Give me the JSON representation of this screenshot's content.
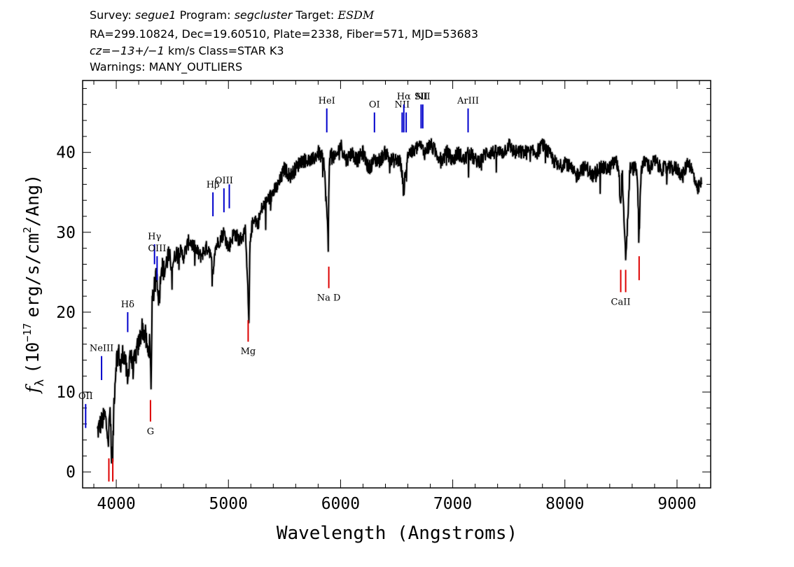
{
  "header": {
    "line1": {
      "survey_label": "Survey:",
      "survey": "segue1",
      "program_label": "Program:",
      "program": "segcluster",
      "target_label": "Target:",
      "target": "ESDM"
    },
    "line2": "RA=299.10824, Dec=19.60510, Plate=2338, Fiber=571, MJD=53683",
    "line3": {
      "cz": "cz=−13+/−1",
      "rest": "km/s Class=STAR K3"
    },
    "line4": "Warnings: MANY_OUTLIERS"
  },
  "chart_data": {
    "type": "line",
    "xlabel": "Wavelength (Angstroms)",
    "ylabel_parts": {
      "f": "f",
      "sub": "λ",
      "pre": "(10",
      "exp": "−17",
      "mid": "erg/s/cm",
      "exp2": "2",
      "post": "/Ang)"
    },
    "xlim": [
      3700,
      9300
    ],
    "ylim": [
      -2,
      49
    ],
    "x_ticks": [
      4000,
      5000,
      6000,
      7000,
      8000,
      9000
    ],
    "y_ticks": [
      0,
      10,
      20,
      30,
      40
    ],
    "series": [
      {
        "color": "#000000",
        "x": [
          3830,
          3860,
          3900,
          3930,
          3945,
          3955,
          3968,
          3980,
          4000,
          4020,
          4040,
          4060,
          4080,
          4101,
          4120,
          4150,
          4180,
          4200,
          4230,
          4260,
          4280,
          4300,
          4310,
          4320,
          4340,
          4360,
          4383,
          4400,
          4430,
          4460,
          4500,
          4550,
          4600,
          4650,
          4700,
          4750,
          4800,
          4830,
          4861,
          4880,
          4920,
          4960,
          5000,
          5050,
          5100,
          5150,
          5170,
          5183,
          5190,
          5200,
          5230,
          5260,
          5300,
          5350,
          5400,
          5450,
          5500,
          5550,
          5600,
          5650,
          5700,
          5750,
          5800,
          5850,
          5880,
          5890,
          5895,
          5900,
          5920,
          5950,
          6000,
          6050,
          6100,
          6150,
          6200,
          6250,
          6300,
          6350,
          6400,
          6450,
          6500,
          6530,
          6550,
          6563,
          6575,
          6600,
          6650,
          6700,
          6750,
          6800,
          6850,
          6900,
          6950,
          7000,
          7050,
          7100,
          7150,
          7200,
          7250,
          7300,
          7350,
          7400,
          7450,
          7500,
          7550,
          7600,
          7650,
          7700,
          7750,
          7800,
          7850,
          7900,
          7950,
          8000,
          8050,
          8100,
          8150,
          8200,
          8250,
          8300,
          8350,
          8400,
          8450,
          8480,
          8498,
          8510,
          8530,
          8542,
          8555,
          8580,
          8610,
          8640,
          8662,
          8680,
          8720,
          8760,
          8800,
          8850,
          8900,
          8950,
          9000,
          9050,
          9100,
          9150,
          9180,
          9200,
          9220
        ],
        "y": [
          5,
          6,
          7,
          4,
          8,
          3,
          2,
          9,
          14,
          15,
          13,
          15,
          14,
          11,
          15,
          13,
          15,
          16,
          18,
          17,
          15,
          16,
          10,
          22,
          23,
          25,
          21,
          26,
          25,
          27,
          26,
          28,
          27,
          29,
          28,
          27,
          28,
          28,
          25,
          28,
          29,
          30,
          28,
          30,
          29,
          30,
          24,
          18,
          27,
          30,
          32,
          31,
          33,
          34,
          35,
          36,
          38,
          37,
          38,
          39,
          39,
          39,
          40,
          39,
          32,
          28,
          35,
          39,
          40,
          39,
          41,
          39,
          40,
          39,
          40,
          38,
          39,
          39,
          40,
          39,
          39,
          39,
          37,
          35,
          37,
          40,
          40,
          41,
          40,
          41,
          40,
          39,
          40,
          39,
          40,
          39,
          40,
          39,
          39,
          40,
          40,
          40,
          40,
          41,
          40,
          40,
          40,
          40,
          40,
          41,
          40,
          39,
          38,
          39,
          38,
          37,
          38,
          38,
          37,
          38,
          38,
          38,
          39,
          38,
          33,
          38,
          30,
          27,
          30,
          38,
          38,
          38,
          30,
          38,
          39,
          38,
          39,
          38,
          38,
          38,
          38,
          37,
          39,
          37,
          35,
          36,
          36
        ]
      }
    ],
    "emission_lines": [
      {
        "label": "OII",
        "x": 3727,
        "y0": 5.5,
        "y1": 8.5
      },
      {
        "label": "NeIII",
        "x": 3869,
        "y0": 11.5,
        "y1": 14.5
      },
      {
        "label": "Hδ",
        "x": 4102,
        "y0": 17.5,
        "y1": 20
      },
      {
        "label": "Hγ",
        "x": 4341,
        "y0": 26,
        "y1": 28.5
      },
      {
        "label": "OIII",
        "x": 4364,
        "y0": 24,
        "y1": 27
      },
      {
        "label": "Hβ",
        "x": 4862,
        "y0": 32,
        "y1": 35
      },
      {
        "label": "OIII",
        "x": 4960,
        "y0": 32.5,
        "y1": 35.5
      },
      {
        "label": "",
        "x": 5008,
        "y0": 33,
        "y1": 36
      },
      {
        "label": "HeI",
        "x": 5877,
        "y0": 42.5,
        "y1": 45.5
      },
      {
        "label": "OI",
        "x": 6302,
        "y0": 42.5,
        "y1": 45
      },
      {
        "label": "NII",
        "x": 6549,
        "y0": 42.5,
        "y1": 45
      },
      {
        "label": "Hα",
        "x": 6564,
        "y0": 42.5,
        "y1": 46
      },
      {
        "label": "",
        "x": 6585,
        "y0": 42.5,
        "y1": 45
      },
      {
        "label": "SII",
        "x": 6718,
        "y0": 43,
        "y1": 46
      },
      {
        "label": "NII",
        "x": 6733,
        "y0": 43,
        "y1": 46
      },
      {
        "label": "ArIII",
        "x": 7137,
        "y0": 42.5,
        "y1": 45.5
      }
    ],
    "absorption_lines": [
      {
        "label": "",
        "x": 3934,
        "y0": -1.2,
        "y1": 1.7
      },
      {
        "label": "",
        "x": 3969,
        "y0": -1.2,
        "y1": 1.7
      },
      {
        "label": "G",
        "x": 4305,
        "y0": 6.3,
        "y1": 9
      },
      {
        "label": "Mg",
        "x": 5176,
        "y0": 16.3,
        "y1": 19
      },
      {
        "label": "Na  D",
        "x": 5895,
        "y0": 23,
        "y1": 25.7
      },
      {
        "label": "CaII",
        "x": 8498,
        "y0": 22.5,
        "y1": 25.3
      },
      {
        "label": "",
        "x": 8542,
        "y0": 22.5,
        "y1": 25.3
      },
      {
        "label": "",
        "x": 8662,
        "y0": 24,
        "y1": 27
      }
    ],
    "colors": {
      "spectrum": "#000000",
      "emission": "#0000cc",
      "absorption": "#dd0000",
      "error_band": "#bbbbbb"
    }
  }
}
